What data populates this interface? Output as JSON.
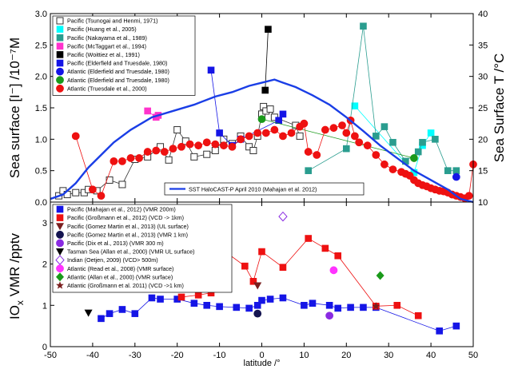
{
  "chart_data": [
    {
      "type": "scatter",
      "panel": "top",
      "ylabel": "Sea surface [I⁻] /10⁻⁷M",
      "ylabel_right": "Sea Surface T /°C",
      "xlim": [
        -50,
        50
      ],
      "ylim": [
        0,
        3.0
      ],
      "ylim_right": [
        10,
        40
      ],
      "yticks": [
        "0.0",
        "0.5",
        "1.0",
        "1.5",
        "2.0",
        "2.5",
        "3.0"
      ],
      "yticks_right": [
        "10",
        "15",
        "20",
        "25",
        "30",
        "35",
        "40"
      ],
      "legend_position": "top-left",
      "series": [
        {
          "name": "Pacific (Tsunogai and Henmi, 1971)",
          "color": "#333333",
          "marker": "square-open",
          "points": [
            [
              -48,
              0.1
            ],
            [
              -47,
              0.18
            ],
            [
              -46,
              0.12
            ],
            [
              -44,
              0.15
            ],
            [
              -42,
              0.15
            ],
            [
              -41,
              0.2
            ],
            [
              -39,
              0.18
            ],
            [
              -36,
              0.35
            ],
            [
              -33,
              0.28
            ],
            [
              -30,
              0.68
            ],
            [
              -27,
              0.72
            ],
            [
              -24,
              0.88
            ],
            [
              -22,
              0.67
            ],
            [
              -20,
              1.15
            ],
            [
              -18,
              0.97
            ],
            [
              -16,
              0.72
            ],
            [
              -13,
              0.76
            ],
            [
              -11,
              0.82
            ],
            [
              -9,
              1.0
            ],
            [
              -7,
              0.93
            ],
            [
              -5,
              1.05
            ],
            [
              -3,
              0.88
            ],
            [
              -2,
              0.82
            ],
            [
              -1,
              1.05
            ],
            [
              0,
              1.4
            ],
            [
              0.4,
              1.52
            ],
            [
              1,
              1.45
            ],
            [
              2,
              1.48
            ],
            [
              3,
              1.35
            ],
            [
              8,
              1.22
            ],
            [
              9,
              1.05
            ]
          ]
        },
        {
          "name": "Pacific (Huang et al., 2005)",
          "color": "#00ffff",
          "marker": "square",
          "points": [
            [
              22,
              1.53
            ],
            [
              36,
              0.47
            ],
            [
              38,
              0.9
            ],
            [
              40,
              1.1
            ]
          ]
        },
        {
          "name": "Pacific (Nakayama et al., 1989)",
          "color": "#2a9d8f",
          "marker": "square",
          "points": [
            [
              11,
              0.5
            ],
            [
              20,
              0.85
            ],
            [
              24,
              2.8
            ],
            [
              27,
              1.05
            ],
            [
              29,
              1.2
            ],
            [
              31,
              0.95
            ],
            [
              34,
              0.65
            ],
            [
              37,
              0.8
            ],
            [
              38,
              0.95
            ],
            [
              41,
              1.0
            ],
            [
              44,
              0.5
            ],
            [
              46,
              0.5
            ]
          ]
        },
        {
          "name": "Pacific (McTaggart et al., 1994)",
          "color": "#ff33cc",
          "marker": "square",
          "points": [
            [
              -27,
              1.45
            ],
            [
              -25,
              1.35
            ],
            [
              -24.5,
              1.38
            ]
          ]
        },
        {
          "name": "Pacific (Woittiez et al., 1991)",
          "color": "#000000",
          "marker": "square",
          "points": [
            [
              0.8,
              1.78
            ],
            [
              1.5,
              2.75
            ]
          ]
        },
        {
          "name": "Pacific (Elderfield and Truesdale, 1980)",
          "color": "#1515e6",
          "marker": "square",
          "points": [
            [
              -12,
              2.1
            ],
            [
              -10,
              1.1
            ],
            [
              -7,
              0.9
            ],
            [
              -5,
              1.0
            ],
            [
              4,
              1.3
            ],
            [
              5,
              1.4
            ]
          ]
        },
        {
          "name": "Atlantic (Elderfield and Truesdale, 1980)",
          "color": "#1515e6",
          "marker": "circle",
          "points": [
            [
              46,
              0.4
            ]
          ]
        },
        {
          "name": "Atlantic (Elderfield and Truesdale, 1980)",
          "color": "#1a9a1a",
          "marker": "circle",
          "points": [
            [
              0,
              1.32
            ],
            [
              36,
              0.7
            ]
          ]
        },
        {
          "name": "Atlantic (Truesdale et al., 2000)",
          "color": "#ee1111",
          "marker": "circle",
          "points": [
            [
              -44,
              1.05
            ],
            [
              -40,
              0.2
            ],
            [
              -38,
              0.1
            ],
            [
              -35,
              0.65
            ],
            [
              -33,
              0.65
            ],
            [
              -31,
              0.7
            ],
            [
              -29,
              0.7
            ],
            [
              -27,
              0.8
            ],
            [
              -25,
              0.82
            ],
            [
              -23,
              0.8
            ],
            [
              -21,
              0.85
            ],
            [
              -19,
              0.88
            ],
            [
              -17,
              0.92
            ],
            [
              -15,
              0.9
            ],
            [
              -13,
              0.95
            ],
            [
              -11,
              0.92
            ],
            [
              -9,
              0.9
            ],
            [
              -7,
              0.88
            ],
            [
              -5,
              1.0
            ],
            [
              -3,
              1.05
            ],
            [
              -1,
              1.1
            ],
            [
              1,
              1.1
            ],
            [
              3,
              1.15
            ],
            [
              5,
              1.05
            ],
            [
              7,
              1.1
            ],
            [
              9,
              1.2
            ],
            [
              10,
              1.25
            ],
            [
              11,
              0.8
            ],
            [
              13,
              0.75
            ],
            [
              15,
              1.15
            ],
            [
              17,
              1.18
            ],
            [
              19,
              1.22
            ],
            [
              20,
              1.1
            ],
            [
              21,
              1.3
            ],
            [
              22,
              1.05
            ],
            [
              23,
              0.95
            ],
            [
              25,
              0.9
            ],
            [
              27,
              0.75
            ],
            [
              29,
              0.6
            ],
            [
              31,
              0.52
            ],
            [
              33,
              0.48
            ],
            [
              34,
              0.45
            ],
            [
              35,
              0.42
            ],
            [
              36,
              0.35
            ],
            [
              37,
              0.3
            ],
            [
              38,
              0.27
            ],
            [
              39,
              0.25
            ],
            [
              40,
              0.22
            ],
            [
              41,
              0.2
            ],
            [
              42,
              0.18
            ],
            [
              43,
              0.17
            ],
            [
              44,
              0.15
            ],
            [
              45,
              0.12
            ],
            [
              46,
              0.1
            ],
            [
              47,
              0.08
            ],
            [
              48,
              0.06
            ],
            [
              49,
              0.1
            ],
            [
              50,
              0.6
            ]
          ]
        },
        {
          "name": "SST HaloCAST-P April 2010 (Mahajan et al. 2012)",
          "color": "#1a3ee6",
          "marker": "line",
          "axis": "right",
          "points": [
            [
              -50,
              10.5
            ],
            [
              -47,
              11.2
            ],
            [
              -44,
              13
            ],
            [
              -41,
              15.5
            ],
            [
              -38,
              17.5
            ],
            [
              -35,
              19.5
            ],
            [
              -31,
              21.5
            ],
            [
              -26,
              23.5
            ],
            [
              -21,
              24.5
            ],
            [
              -16,
              25.5
            ],
            [
              -11,
              26.8
            ],
            [
              -7,
              27.5
            ],
            [
              -3,
              28.5
            ],
            [
              0,
              29
            ],
            [
              3,
              29.5
            ],
            [
              5,
              29
            ],
            [
              8,
              28.3
            ],
            [
              12,
              27
            ],
            [
              16,
              25.5
            ],
            [
              20,
              23.5
            ],
            [
              24,
              21.3
            ],
            [
              28,
              19
            ],
            [
              32,
              17
            ],
            [
              36,
              15
            ],
            [
              40,
              13.5
            ],
            [
              44,
              12
            ],
            [
              47,
              10.5
            ],
            [
              50,
              10
            ]
          ]
        }
      ]
    },
    {
      "type": "scatter",
      "panel": "bottom",
      "xlabel": "latitude /°",
      "ylabel": "IO",
      "ylabel_sub": "x",
      "ylabel_rest": " VMR /pptv",
      "xlim": [
        -50,
        50
      ],
      "ylim": [
        0,
        3.5
      ],
      "xticks": [
        "-50",
        "-40",
        "-30",
        "-20",
        "-10",
        "0",
        "10",
        "20",
        "30",
        "40",
        "50"
      ],
      "yticks": [
        "0",
        "1",
        "2",
        "3"
      ],
      "legend_position": "top-left",
      "series": [
        {
          "name": "Pacific (Mahajan et al., 2012) (VMR 200m)",
          "color": "#1515e6",
          "marker": "square",
          "points": [
            [
              -38,
              0.68
            ],
            [
              -36,
              0.8
            ],
            [
              -33,
              0.9
            ],
            [
              -30,
              0.8
            ],
            [
              -26,
              1.18
            ],
            [
              -24,
              1.15
            ],
            [
              -20,
              1.15
            ],
            [
              -16,
              1.05
            ],
            [
              -13,
              1.0
            ],
            [
              -10,
              0.97
            ],
            [
              -6,
              0.95
            ],
            [
              -3,
              0.93
            ],
            [
              -1,
              1.0
            ],
            [
              0,
              1.12
            ],
            [
              2,
              1.15
            ],
            [
              5,
              1.18
            ],
            [
              10,
              1.0
            ],
            [
              12,
              1.05
            ],
            [
              16,
              1.0
            ],
            [
              18,
              0.93
            ],
            [
              21,
              0.95
            ],
            [
              24,
              0.95
            ],
            [
              27,
              0.95
            ],
            [
              42,
              0.38
            ],
            [
              46,
              0.5
            ]
          ]
        },
        {
          "name": "Pacific (Großmann et al., 2012) (VCD -> 1km)",
          "color": "#ee1111",
          "marker": "square",
          "points": [
            [
              -19,
              1.2
            ],
            [
              -15,
              1.25
            ],
            [
              -12,
              1.3
            ],
            [
              -8,
              2.25
            ],
            [
              -4,
              1.95
            ],
            [
              -2,
              1.58
            ],
            [
              0,
              2.3
            ],
            [
              5,
              1.92
            ],
            [
              11,
              2.62
            ],
            [
              15,
              2.38
            ],
            [
              18,
              2.2
            ],
            [
              27,
              0.98
            ],
            [
              32,
              1.0
            ],
            [
              37,
              0.75
            ]
          ]
        },
        {
          "name": "Pacific (Gomez Martin et al., 2013) (UL surface)",
          "color": "#7a1f1f",
          "marker": "triangle-down",
          "points": [
            [
              -1,
              1.48
            ]
          ]
        },
        {
          "name": "Pacific (Gomez Martin et al., 2013) (VMR 1 km)",
          "color": "#141450",
          "marker": "circle",
          "points": [
            [
              -1,
              0.8
            ]
          ]
        },
        {
          "name": "Pacific (Dix et al., 2013) (VMR 300 m)",
          "color": "#8a2be2",
          "marker": "circle",
          "points": [
            [
              16,
              0.75
            ]
          ]
        },
        {
          "name": "Tasman Sea (Allan et al., 2000) (VMR UL surface)",
          "color": "#000000",
          "marker": "triangle-down",
          "points": [
            [
              -41,
              0.82
            ]
          ]
        },
        {
          "name": "Indian (Oetjen, 2009) (VCD> 500m)",
          "color": "#8a2be2",
          "marker": "diamond-open",
          "points": [
            [
              5,
              3.15
            ]
          ]
        },
        {
          "name": "Atlantic (Read et al., 2008) (VMR surface)",
          "color": "#ff33ff",
          "marker": "circle",
          "points": [
            [
              17,
              1.85
            ]
          ]
        },
        {
          "name": "Atlantic (Allan et al., 2000) (VMR surface)",
          "color": "#1a9a1a",
          "marker": "diamond",
          "points": [
            [
              28,
              1.72
            ]
          ]
        },
        {
          "name": "Atlantic (Großmann et al. 2011) (VCD ->1 km)",
          "color": "#7a1f1f",
          "marker": "star",
          "points": [
            [
              27,
              0.98
            ]
          ]
        }
      ]
    }
  ]
}
